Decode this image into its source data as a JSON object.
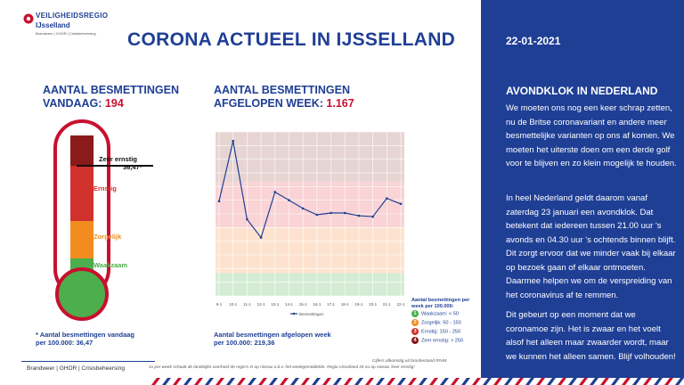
{
  "logo": {
    "title": "VEILIGHEIDSREGIO",
    "subtitle": "IJsselland",
    "tagline": "Brandweer | GHOR | Crisisbeheersing"
  },
  "header": {
    "title": "CORONA ACTUEEL IN IJSSELLAND",
    "date": "22-01-2021"
  },
  "today": {
    "label_line1": "AANTAL BESMETTINGEN",
    "label_line2": "VANDAAG:",
    "value": "194"
  },
  "week": {
    "label_line1": "AANTAL BESMETTINGEN",
    "label_line2": "AFGELOPEN WEEK:",
    "value": "1.167"
  },
  "thermometer": {
    "marker_label": "Zeer ernstig",
    "marker_value": "36,47*",
    "levels": [
      "Ernstig",
      "Zorgelijk",
      "Waakzaam"
    ],
    "colors": {
      "zeer_ernstig": "#8b1a1a",
      "ernstig": "#d0312d",
      "zorgelijk": "#f28c1e",
      "waakzaam": "#4cae4c"
    },
    "footnote_line1": "* Aantal besmettingen vandaag",
    "footnote_line2": "per 100.000: 36,47"
  },
  "week_footer": {
    "line1": "Aantal besmettingen afgelopen week",
    "line2": "per 100.000: 219,36"
  },
  "chart_legend": {
    "title": "Aantal besmettingen per week per 100.000:",
    "items": [
      {
        "num": "1",
        "text": "Waakzaam: < 50",
        "color": "#4cae4c"
      },
      {
        "num": "2",
        "text": "Zorgelijk: 50 - 150",
        "color": "#f28c1e"
      },
      {
        "num": "3",
        "text": "Ernstig: 150 - 250",
        "color": "#d0312d"
      },
      {
        "num": "4",
        "text": "Zeer ernstig: > 250",
        "color": "#8b1a1a"
      }
    ]
  },
  "chart_data": {
    "type": "line",
    "x": [
      "9-1",
      "10-1",
      "11-1",
      "12-1",
      "13-1",
      "14-1",
      "15-1",
      "16-1",
      "17-1",
      "18-1",
      "19-1",
      "20-1",
      "21-1",
      "22-1"
    ],
    "series": [
      {
        "name": "Besmettingen",
        "values": [
          208,
          340,
          168,
          128,
          228,
          210,
          192,
          178,
          182,
          182,
          176,
          174,
          214,
          202
        ]
      }
    ],
    "ylim": [
      0,
      360
    ],
    "bands": [
      {
        "from": 0,
        "to": 50,
        "color": "#d4ecd3"
      },
      {
        "from": 50,
        "to": 150,
        "color": "#fde3cf"
      },
      {
        "from": 150,
        "to": 250,
        "color": "#f9d3d5"
      },
      {
        "from": 250,
        "to": 360,
        "color": "#e7d5d3"
      }
    ],
    "line_color": "#1f3f95",
    "grid": true
  },
  "right": {
    "heading": "AVONDKLOK IN NEDERLAND",
    "p1": "We moeten ons nog een keer schrap zetten, nu de Britse coronavariant en andere meer besmettelijke varianten op ons af komen. We moeten het uiterste doen om een derde golf voor te blijven en zo klein mogelijk te houden.",
    "p2": "In heel Nederland geldt daarom vanaf zaterdag 23 januari een avondklok. Dat betekent dat iedereen tussen 21.00 uur 's avonds en 04.30 uur 's ochtends binnen blijft. Dit zorgt ervoor dat we minder vaak bij elkaar op bezoek gaan of elkaar ontmoeten. Daarmee helpen we om de verspreiding van het coronavirus af te remmen.",
    "p3": "Dit gebeurt op een moment dat we coronamoe zijn. Het is zwaar en het voelt alsof het alleen maar zwaarder wordt, maar we kunnen het alleen samen. Blijf volhouden!"
  },
  "footer": {
    "org": "Brandweer | GHOR | Crisisbeheersing",
    "note_left": "1x per week schaalt de landelijke overheid de regio's in op niveau o.b.v. het weekgemiddelde. Regio IJsselland zit nu op niveau 'zeer ernstig'.",
    "note_right": "Cijfers afkomstig uit bronbestand RIVM."
  },
  "theme": {
    "navy": "#1f3f95",
    "red": "#c8102e"
  }
}
